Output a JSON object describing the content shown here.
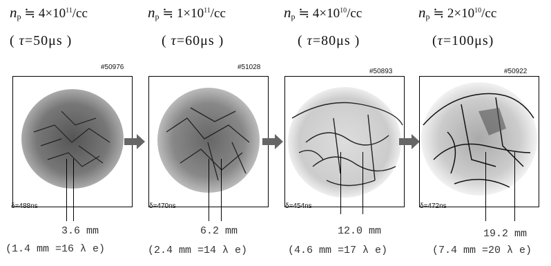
{
  "panels": [
    {
      "np_mantissa": "4",
      "np_exp": "11",
      "np_unit": "/cc",
      "tau": "50μs",
      "shot": "#50976",
      "delta": "δ=488ns",
      "spacing": "3.6 mm",
      "wavelength": "(1.4 mm =16 λ e)"
    },
    {
      "np_mantissa": "1",
      "np_exp": "11",
      "np_unit": "/cc",
      "tau": "60μs",
      "shot": "#51028",
      "delta": "δ=470ns",
      "spacing": "6.2 mm",
      "wavelength": "(2.4 mm =14 λ e)"
    },
    {
      "np_mantissa": "4",
      "np_exp": "10",
      "np_unit": "/cc",
      "tau": "80μs",
      "shot": "#50893",
      "delta": "δ=454ns",
      "spacing": "12.0 mm",
      "wavelength": "(4.6 mm =17 λ e)"
    },
    {
      "np_mantissa": "2",
      "np_exp": "10",
      "np_unit": "/cc",
      "tau": "100μs",
      "shot": "#50922",
      "delta": "δ=472ns",
      "spacing": "19.2 mm",
      "wavelength": "(7.4 mm =20 λ e)"
    }
  ],
  "labels": {
    "n_symbol": "n",
    "n_sub": "p",
    "approx_times": "≒",
    "tau_symbol": "τ"
  }
}
